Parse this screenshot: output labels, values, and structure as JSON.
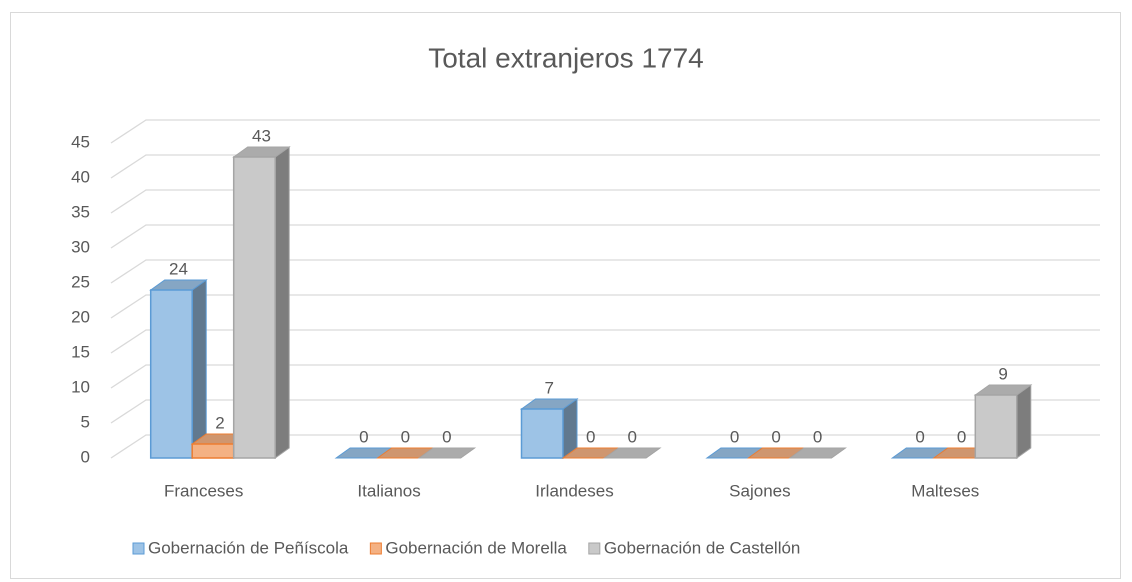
{
  "chart_data": {
    "type": "bar3d",
    "title": "Total extranjeros 1774",
    "categories": [
      "Franceses",
      "Italianos",
      "Irlandeses",
      "Sajones",
      "Malteses"
    ],
    "series": [
      {
        "name": "Gobernación de Peñíscola",
        "color": "#9dc3e6",
        "values": [
          24,
          0,
          7,
          0,
          0
        ]
      },
      {
        "name": "Gobernación de Morella",
        "color": "#f4b183",
        "values": [
          2,
          0,
          0,
          0,
          0
        ]
      },
      {
        "name": "Gobernación de Castellón",
        "color": "#c9c9c9",
        "values": [
          43,
          0,
          0,
          0,
          9
        ]
      }
    ],
    "ylim": [
      0,
      45
    ],
    "yticks": [
      0,
      5,
      10,
      15,
      20,
      25,
      30,
      35,
      40,
      45
    ],
    "grid": true,
    "legend": "bottom"
  }
}
